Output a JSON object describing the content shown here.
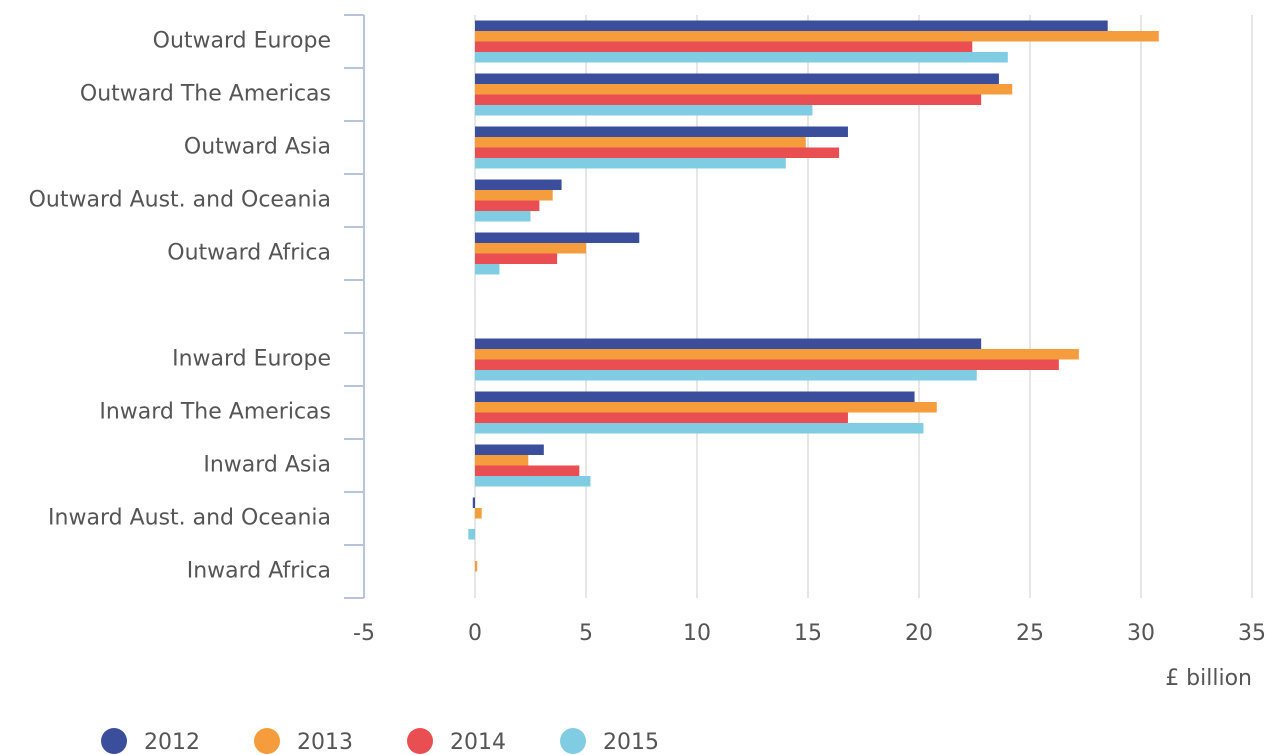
{
  "chart_data": {
    "type": "hbar",
    "categories": [
      "Outward Europe",
      "Outward The Americas",
      "Outward Asia",
      "Outward Aust. and Oceania",
      "Outward Africa",
      null,
      "Inward Europe",
      "Inward The Americas",
      "Inward Asia",
      "Inward Aust. and Oceania",
      "Inward Africa"
    ],
    "series": [
      {
        "name": "2012",
        "color": "#3a4e9c",
        "values": [
          28.5,
          23.6,
          16.8,
          3.9,
          7.4,
          null,
          22.8,
          19.8,
          3.1,
          -0.1,
          0
        ]
      },
      {
        "name": "2013",
        "color": "#f59c3c",
        "values": [
          30.8,
          24.2,
          14.9,
          3.5,
          5.0,
          null,
          27.2,
          20.8,
          2.4,
          0.3,
          0.1
        ]
      },
      {
        "name": "2014",
        "color": "#e94e52",
        "values": [
          22.4,
          22.8,
          16.4,
          2.9,
          3.7,
          null,
          26.3,
          16.8,
          4.7,
          0,
          0
        ]
      },
      {
        "name": "2015",
        "color": "#7fcce3",
        "values": [
          24.0,
          15.2,
          14.0,
          2.5,
          1.1,
          null,
          22.6,
          20.2,
          5.2,
          -0.3,
          0
        ]
      }
    ],
    "x_label": "£ billion",
    "xlim": [
      -5,
      35
    ],
    "xticks": [
      -5,
      0,
      5,
      10,
      15,
      20,
      25,
      30,
      35
    ],
    "grid": true,
    "legend": "bottom"
  }
}
